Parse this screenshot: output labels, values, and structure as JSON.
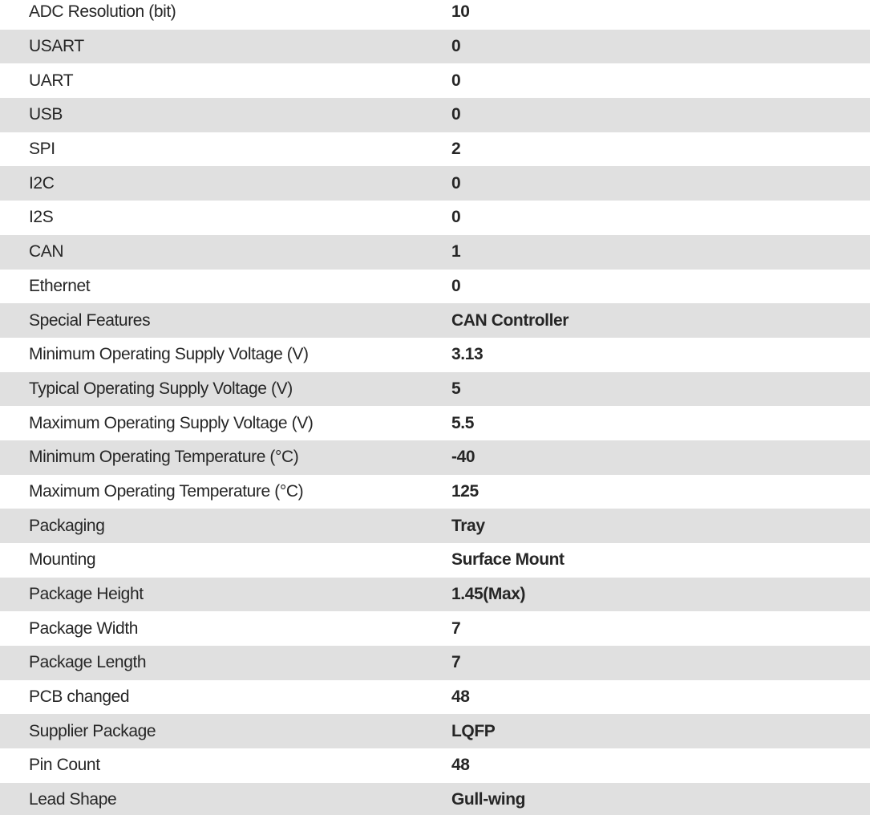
{
  "table": {
    "name": "product-specifications",
    "colors": {
      "stripe": "#e0e0e0",
      "background": "#ffffff",
      "text": "#262626"
    },
    "columns": [
      "attribute",
      "value"
    ],
    "rows": [
      {
        "label": "ADC Resolution (bit)",
        "value": "10"
      },
      {
        "label": "USART",
        "value": "0"
      },
      {
        "label": "UART",
        "value": "0"
      },
      {
        "label": "USB",
        "value": "0"
      },
      {
        "label": "SPI",
        "value": "2"
      },
      {
        "label": "I2C",
        "value": "0"
      },
      {
        "label": "I2S",
        "value": "0"
      },
      {
        "label": "CAN",
        "value": "1"
      },
      {
        "label": "Ethernet",
        "value": "0"
      },
      {
        "label": "Special Features",
        "value": "CAN Controller"
      },
      {
        "label": "Minimum Operating Supply Voltage (V)",
        "value": "3.13"
      },
      {
        "label": "Typical Operating Supply Voltage (V)",
        "value": "5"
      },
      {
        "label": "Maximum Operating Supply Voltage (V)",
        "value": "5.5"
      },
      {
        "label": "Minimum Operating Temperature (°C)",
        "value": "-40"
      },
      {
        "label": "Maximum Operating Temperature (°C)",
        "value": "125"
      },
      {
        "label": "Packaging",
        "value": "Tray"
      },
      {
        "label": "Mounting",
        "value": "Surface Mount"
      },
      {
        "label": "Package Height",
        "value": "1.45(Max)"
      },
      {
        "label": "Package Width",
        "value": "7"
      },
      {
        "label": "Package Length",
        "value": "7"
      },
      {
        "label": "PCB changed",
        "value": "48"
      },
      {
        "label": "Supplier Package",
        "value": "LQFP"
      },
      {
        "label": "Pin Count",
        "value": "48"
      },
      {
        "label": "Lead Shape",
        "value": "Gull-wing"
      }
    ]
  }
}
